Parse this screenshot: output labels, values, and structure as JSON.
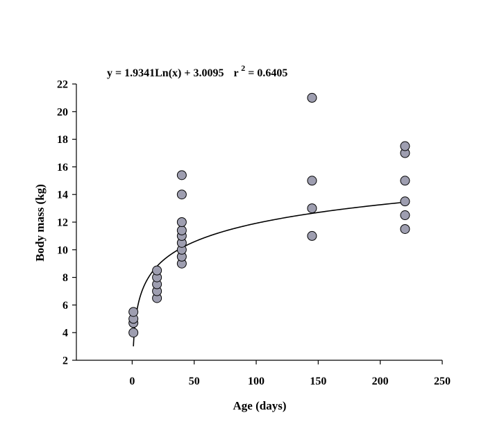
{
  "chart_data": {
    "type": "scatter",
    "title": "",
    "xlabel": "Age (days)",
    "ylabel": "Body mass (kg)",
    "xlim": [
      -45,
      250
    ],
    "ylim": [
      2,
      22
    ],
    "x_ticks": [
      0,
      50,
      100,
      150,
      200,
      250
    ],
    "y_ticks": [
      2,
      4,
      6,
      8,
      10,
      12,
      14,
      16,
      18,
      20,
      22
    ],
    "grid": false,
    "legend": "none",
    "marker_color": "#9e9eb0",
    "marker_edge_color": "#000000",
    "trendline": {
      "type": "logarithmic",
      "a": 1.9341,
      "b": 3.0095,
      "x_range": [
        1,
        220
      ],
      "equation_text": "y = 1.9341Ln(x) + 3.0095",
      "r2_prefix": "r",
      "r2_exponent": "2",
      "r2_value": " = 0.6405"
    },
    "points": [
      {
        "x": 1,
        "y": 4.0
      },
      {
        "x": 1,
        "y": 4.7
      },
      {
        "x": 1,
        "y": 5.0
      },
      {
        "x": 1,
        "y": 5.5
      },
      {
        "x": 20,
        "y": 6.5
      },
      {
        "x": 20,
        "y": 7.0
      },
      {
        "x": 20,
        "y": 7.5
      },
      {
        "x": 20,
        "y": 8.0
      },
      {
        "x": 20,
        "y": 8.5
      },
      {
        "x": 40,
        "y": 9.0
      },
      {
        "x": 40,
        "y": 9.5
      },
      {
        "x": 40,
        "y": 10.0
      },
      {
        "x": 40,
        "y": 10.5
      },
      {
        "x": 40,
        "y": 11.0
      },
      {
        "x": 40,
        "y": 11.4
      },
      {
        "x": 40,
        "y": 12.0
      },
      {
        "x": 40,
        "y": 14.0
      },
      {
        "x": 40,
        "y": 15.4
      },
      {
        "x": 145,
        "y": 11.0
      },
      {
        "x": 145,
        "y": 13.0
      },
      {
        "x": 145,
        "y": 15.0
      },
      {
        "x": 145,
        "y": 21.0
      },
      {
        "x": 220,
        "y": 11.5
      },
      {
        "x": 220,
        "y": 12.5
      },
      {
        "x": 220,
        "y": 13.5
      },
      {
        "x": 220,
        "y": 15.0
      },
      {
        "x": 220,
        "y": 17.0
      },
      {
        "x": 220,
        "y": 17.5
      }
    ]
  }
}
